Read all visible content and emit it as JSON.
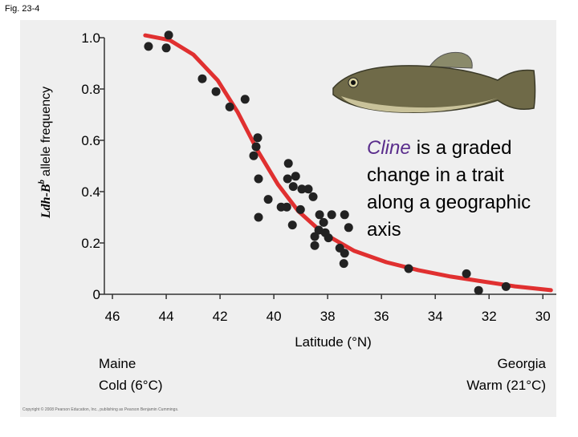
{
  "chart_data": {
    "type": "scatter",
    "figure_label": "Fig. 23-4",
    "ylabel": {
      "gene": "Ldh-B",
      "superscript": "b",
      "text": "allele frequency"
    },
    "xlabel": "Latitude (°N)",
    "xlim": [
      46.3,
      29.5
    ],
    "ylim": [
      0,
      1.0
    ],
    "xticks": [
      46,
      44,
      42,
      40,
      38,
      36,
      34,
      32,
      30
    ],
    "yticks": [
      0,
      0.2,
      0.4,
      0.6,
      0.8,
      {
        "value": 1,
        "label": "1.0"
      }
    ],
    "points": {
      "color": "#222222",
      "x": [
        44.66,
        43.91,
        44.0,
        42.66,
        42.15,
        41.64,
        41.07,
        40.6,
        40.66,
        40.75,
        40.57,
        40.57,
        40.21,
        39.46,
        39.49,
        39.19,
        39.28,
        38.96,
        38.72,
        39.73,
        39.52,
        39.01,
        39.31,
        38.54,
        38.3,
        38.15,
        38.48,
        38.33,
        38.48,
        37.85,
        38.09,
        37.97,
        37.37,
        37.22,
        37.55,
        37.37,
        37.4,
        34.99,
        32.84,
        32.39,
        31.37
      ],
      "y": [
        0.966,
        1.01,
        0.96,
        0.84,
        0.79,
        0.73,
        0.76,
        0.61,
        0.575,
        0.54,
        0.45,
        0.3,
        0.37,
        0.51,
        0.45,
        0.46,
        0.42,
        0.41,
        0.41,
        0.34,
        0.34,
        0.33,
        0.27,
        0.38,
        0.31,
        0.28,
        0.225,
        0.25,
        0.19,
        0.31,
        0.24,
        0.22,
        0.31,
        0.26,
        0.18,
        0.16,
        0.12,
        0.1,
        0.08,
        0.015,
        0.03
      ]
    },
    "curve": {
      "color": "#e03030",
      "x": [
        44.78,
        43.88,
        42.99,
        42.09,
        41.34,
        40.6,
        39.85,
        39.1,
        38.21,
        37.01,
        35.82,
        34.63,
        33.43,
        32.24,
        31.04,
        29.7
      ],
      "y": [
        1.009,
        0.991,
        0.934,
        0.834,
        0.709,
        0.559,
        0.428,
        0.325,
        0.241,
        0.169,
        0.125,
        0.094,
        0.069,
        0.05,
        0.031,
        0.016
      ]
    },
    "annotation": {
      "highlight": "Cline",
      "highlight_color": "#5a2d8c",
      "lines": [
        "is a graded",
        "change in a trait",
        "along a geographic",
        "axis"
      ]
    },
    "left_note": [
      "Maine",
      "Cold (6°C)"
    ],
    "right_note": [
      "Georgia",
      "Warm (21°C)"
    ],
    "copyright": "Copyright © 2008 Pearson Education, Inc., publishing as Pearson Benjamin Cummings."
  }
}
